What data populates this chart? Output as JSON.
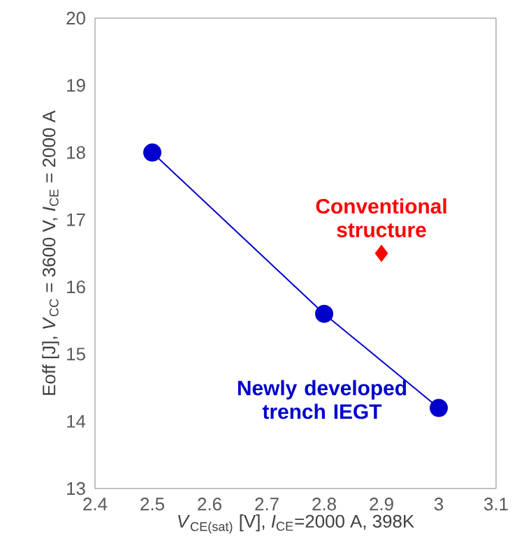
{
  "chart_data": {
    "type": "line",
    "xlabel": "*V*$_{CE(sat)}$ [V], *I*$_{CE}$=2000 A, 398K",
    "ylabel": "Eoff [J], *V*$_{CC}$ = 3600 V, *I*$_{CE}$ = 2000 A",
    "xlim": [
      2.4,
      3.1
    ],
    "xticks": [
      2.4,
      2.5,
      2.6,
      2.7,
      2.8,
      2.9,
      3,
      3.1
    ],
    "ylim": [
      13,
      20
    ],
    "yticks": [
      13,
      14,
      15,
      16,
      17,
      18,
      19,
      20
    ],
    "series": [
      {
        "name": "**Newly developed trench IEGT**",
        "marker": "circle",
        "color": "#0000cc",
        "x": [
          2.5,
          2.8,
          3.0
        ],
        "values": [
          18.0,
          15.6,
          14.2
        ]
      },
      {
        "name": "**Conventional structure**",
        "type": "scatter",
        "marker": "diamond",
        "color": "#ff0000",
        "x": [
          2.9
        ],
        "values": [
          16.5
        ]
      }
    ]
  }
}
